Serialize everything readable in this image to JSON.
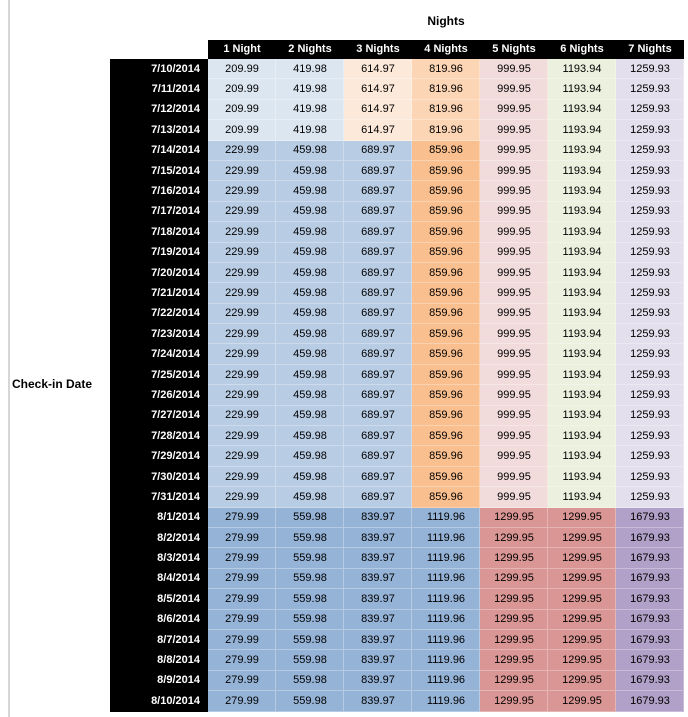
{
  "chart_data": {
    "type": "table",
    "title": "Nights",
    "row_axis_label": "Check-in Date",
    "columns": [
      "1 Night",
      "2 Nights",
      "3 Nights",
      "4 Nights",
      "5 Nights",
      "6 Nights",
      "7 Nights"
    ],
    "header_colors": {
      "bg": "#000000",
      "fg": "#FFFFFF"
    },
    "tier_colors": {
      "A": [
        "#DCE6F1",
        "#DCE6F1",
        "#FDE9D9",
        "#FCD5B4",
        "#F2DCDB",
        "#EBF1DE",
        "#E4DFEC"
      ],
      "B": [
        "#B8CCE4",
        "#B8CCE4",
        "#B8CCE4",
        "#FABF8F",
        "#F2DCDB",
        "#EBF1DE",
        "#E4DFEC"
      ],
      "C": [
        "#95B3D7",
        "#95B3D7",
        "#95B3D7",
        "#95B3D7",
        "#DA9694",
        "#DA9694",
        "#B1A0C7"
      ]
    },
    "rows": [
      {
        "date": "7/10/2014",
        "tier": "A",
        "values": [
          "209.99",
          "419.98",
          "614.97",
          "819.96",
          "999.95",
          "1193.94",
          "1259.93"
        ]
      },
      {
        "date": "7/11/2014",
        "tier": "A",
        "values": [
          "209.99",
          "419.98",
          "614.97",
          "819.96",
          "999.95",
          "1193.94",
          "1259.93"
        ]
      },
      {
        "date": "7/12/2014",
        "tier": "A",
        "values": [
          "209.99",
          "419.98",
          "614.97",
          "819.96",
          "999.95",
          "1193.94",
          "1259.93"
        ]
      },
      {
        "date": "7/13/2014",
        "tier": "A",
        "values": [
          "209.99",
          "419.98",
          "614.97",
          "819.96",
          "999.95",
          "1193.94",
          "1259.93"
        ]
      },
      {
        "date": "7/14/2014",
        "tier": "B",
        "values": [
          "229.99",
          "459.98",
          "689.97",
          "859.96",
          "999.95",
          "1193.94",
          "1259.93"
        ]
      },
      {
        "date": "7/15/2014",
        "tier": "B",
        "values": [
          "229.99",
          "459.98",
          "689.97",
          "859.96",
          "999.95",
          "1193.94",
          "1259.93"
        ]
      },
      {
        "date": "7/16/2014",
        "tier": "B",
        "values": [
          "229.99",
          "459.98",
          "689.97",
          "859.96",
          "999.95",
          "1193.94",
          "1259.93"
        ]
      },
      {
        "date": "7/17/2014",
        "tier": "B",
        "values": [
          "229.99",
          "459.98",
          "689.97",
          "859.96",
          "999.95",
          "1193.94",
          "1259.93"
        ]
      },
      {
        "date": "7/18/2014",
        "tier": "B",
        "values": [
          "229.99",
          "459.98",
          "689.97",
          "859.96",
          "999.95",
          "1193.94",
          "1259.93"
        ]
      },
      {
        "date": "7/19/2014",
        "tier": "B",
        "values": [
          "229.99",
          "459.98",
          "689.97",
          "859.96",
          "999.95",
          "1193.94",
          "1259.93"
        ]
      },
      {
        "date": "7/20/2014",
        "tier": "B",
        "values": [
          "229.99",
          "459.98",
          "689.97",
          "859.96",
          "999.95",
          "1193.94",
          "1259.93"
        ]
      },
      {
        "date": "7/21/2014",
        "tier": "B",
        "values": [
          "229.99",
          "459.98",
          "689.97",
          "859.96",
          "999.95",
          "1193.94",
          "1259.93"
        ]
      },
      {
        "date": "7/22/2014",
        "tier": "B",
        "values": [
          "229.99",
          "459.98",
          "689.97",
          "859.96",
          "999.95",
          "1193.94",
          "1259.93"
        ]
      },
      {
        "date": "7/23/2014",
        "tier": "B",
        "values": [
          "229.99",
          "459.98",
          "689.97",
          "859.96",
          "999.95",
          "1193.94",
          "1259.93"
        ]
      },
      {
        "date": "7/24/2014",
        "tier": "B",
        "values": [
          "229.99",
          "459.98",
          "689.97",
          "859.96",
          "999.95",
          "1193.94",
          "1259.93"
        ]
      },
      {
        "date": "7/25/2014",
        "tier": "B",
        "values": [
          "229.99",
          "459.98",
          "689.97",
          "859.96",
          "999.95",
          "1193.94",
          "1259.93"
        ]
      },
      {
        "date": "7/26/2014",
        "tier": "B",
        "values": [
          "229.99",
          "459.98",
          "689.97",
          "859.96",
          "999.95",
          "1193.94",
          "1259.93"
        ]
      },
      {
        "date": "7/27/2014",
        "tier": "B",
        "values": [
          "229.99",
          "459.98",
          "689.97",
          "859.96",
          "999.95",
          "1193.94",
          "1259.93"
        ]
      },
      {
        "date": "7/28/2014",
        "tier": "B",
        "values": [
          "229.99",
          "459.98",
          "689.97",
          "859.96",
          "999.95",
          "1193.94",
          "1259.93"
        ]
      },
      {
        "date": "7/29/2014",
        "tier": "B",
        "values": [
          "229.99",
          "459.98",
          "689.97",
          "859.96",
          "999.95",
          "1193.94",
          "1259.93"
        ]
      },
      {
        "date": "7/30/2014",
        "tier": "B",
        "values": [
          "229.99",
          "459.98",
          "689.97",
          "859.96",
          "999.95",
          "1193.94",
          "1259.93"
        ]
      },
      {
        "date": "7/31/2014",
        "tier": "B",
        "values": [
          "229.99",
          "459.98",
          "689.97",
          "859.96",
          "999.95",
          "1193.94",
          "1259.93"
        ]
      },
      {
        "date": "8/1/2014",
        "tier": "C",
        "values": [
          "279.99",
          "559.98",
          "839.97",
          "1119.96",
          "1299.95",
          "1299.95",
          "1679.93"
        ]
      },
      {
        "date": "8/2/2014",
        "tier": "C",
        "values": [
          "279.99",
          "559.98",
          "839.97",
          "1119.96",
          "1299.95",
          "1299.95",
          "1679.93"
        ]
      },
      {
        "date": "8/3/2014",
        "tier": "C",
        "values": [
          "279.99",
          "559.98",
          "839.97",
          "1119.96",
          "1299.95",
          "1299.95",
          "1679.93"
        ]
      },
      {
        "date": "8/4/2014",
        "tier": "C",
        "values": [
          "279.99",
          "559.98",
          "839.97",
          "1119.96",
          "1299.95",
          "1299.95",
          "1679.93"
        ]
      },
      {
        "date": "8/5/2014",
        "tier": "C",
        "values": [
          "279.99",
          "559.98",
          "839.97",
          "1119.96",
          "1299.95",
          "1299.95",
          "1679.93"
        ]
      },
      {
        "date": "8/6/2014",
        "tier": "C",
        "values": [
          "279.99",
          "559.98",
          "839.97",
          "1119.96",
          "1299.95",
          "1299.95",
          "1679.93"
        ]
      },
      {
        "date": "8/7/2014",
        "tier": "C",
        "values": [
          "279.99",
          "559.98",
          "839.97",
          "1119.96",
          "1299.95",
          "1299.95",
          "1679.93"
        ]
      },
      {
        "date": "8/8/2014",
        "tier": "C",
        "values": [
          "279.99",
          "559.98",
          "839.97",
          "1119.96",
          "1299.95",
          "1299.95",
          "1679.93"
        ]
      },
      {
        "date": "8/9/2014",
        "tier": "C",
        "values": [
          "279.99",
          "559.98",
          "839.97",
          "1119.96",
          "1299.95",
          "1299.95",
          "1679.93"
        ]
      },
      {
        "date": "8/10/2014",
        "tier": "C",
        "values": [
          "279.99",
          "559.98",
          "839.97",
          "1119.96",
          "1299.95",
          "1299.95",
          "1679.93"
        ]
      }
    ]
  }
}
